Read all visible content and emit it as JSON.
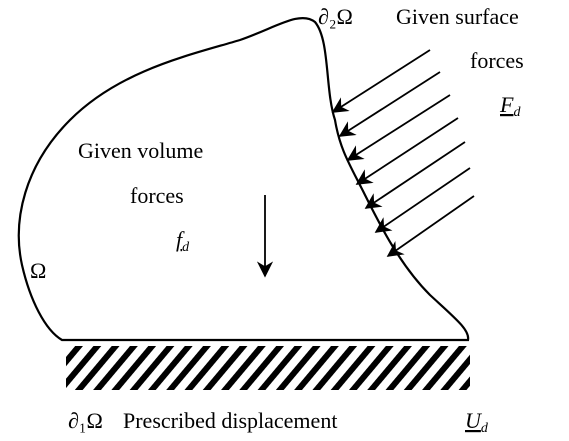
{
  "surface": {
    "boundary": "∂₂Ω",
    "title": "Given surface",
    "subtitle": "forces",
    "symbol": {
      "base": "F",
      "subscript": "d"
    }
  },
  "volume": {
    "title": "Given volume",
    "subtitle": "forces",
    "symbol": {
      "base": "f",
      "subscript": "d"
    }
  },
  "domain": "Ω",
  "support": {
    "boundary": "∂₁Ω",
    "title": "Prescribed displacement",
    "symbol": {
      "base": "U",
      "subscript": "d"
    }
  }
}
